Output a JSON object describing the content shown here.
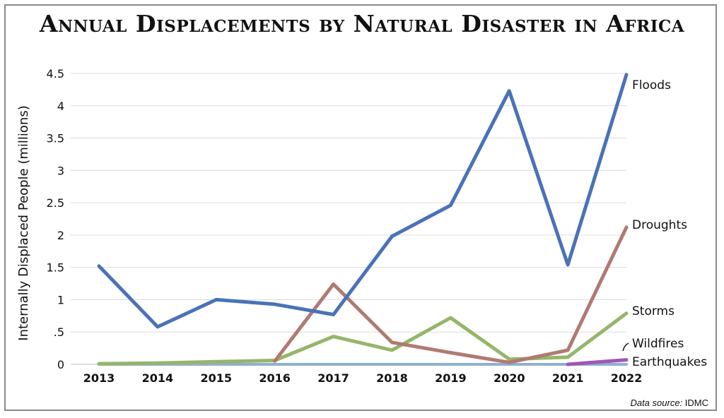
{
  "title": "Annual Displacements by Natural Disaster in Africa",
  "source": {
    "label": "Data source",
    "value": "IDMC"
  },
  "chart_data": {
    "type": "line",
    "title": "Annual Displacements by Natural Disaster in Africa",
    "xlabel": "",
    "ylabel": "Internally Displaced People (millions)",
    "x": [
      "2013",
      "2014",
      "2015",
      "2016",
      "2017",
      "2018",
      "2019",
      "2020",
      "2021",
      "2022"
    ],
    "ylim": [
      0,
      4.5
    ],
    "yticks": [
      0,
      0.5,
      1,
      1.5,
      2,
      2.5,
      3,
      3.5,
      4,
      4.5
    ],
    "ytick_labels": [
      "0",
      ".5",
      "1",
      "1.5",
      "2",
      "2.5",
      "3",
      "3.5",
      "4",
      "4.5"
    ],
    "grid": "horizontal",
    "legend": "labels at line ends (right)",
    "series": [
      {
        "name": "Floods",
        "color": "#4a72b8",
        "values": [
          1.52,
          0.58,
          1.0,
          0.93,
          0.77,
          1.98,
          2.46,
          4.23,
          1.54,
          4.48
        ]
      },
      {
        "name": "Droughts",
        "color": "#b07a72",
        "values": [
          null,
          null,
          null,
          0.05,
          1.24,
          0.34,
          0.18,
          0.03,
          0.22,
          2.12
        ]
      },
      {
        "name": "Storms",
        "color": "#96b56a",
        "values": [
          0.01,
          0.02,
          0.04,
          0.06,
          0.43,
          0.22,
          0.72,
          0.08,
          0.11,
          0.79
        ]
      },
      {
        "name": "Wildfires",
        "color": "#a155b9",
        "values": [
          null,
          null,
          null,
          null,
          null,
          null,
          null,
          null,
          0.0,
          0.07
        ]
      },
      {
        "name": "Earthquakes",
        "color": "#8fb1cf",
        "values": [
          0,
          0,
          0,
          0,
          0,
          0,
          0,
          0,
          0,
          0
        ]
      }
    ]
  }
}
